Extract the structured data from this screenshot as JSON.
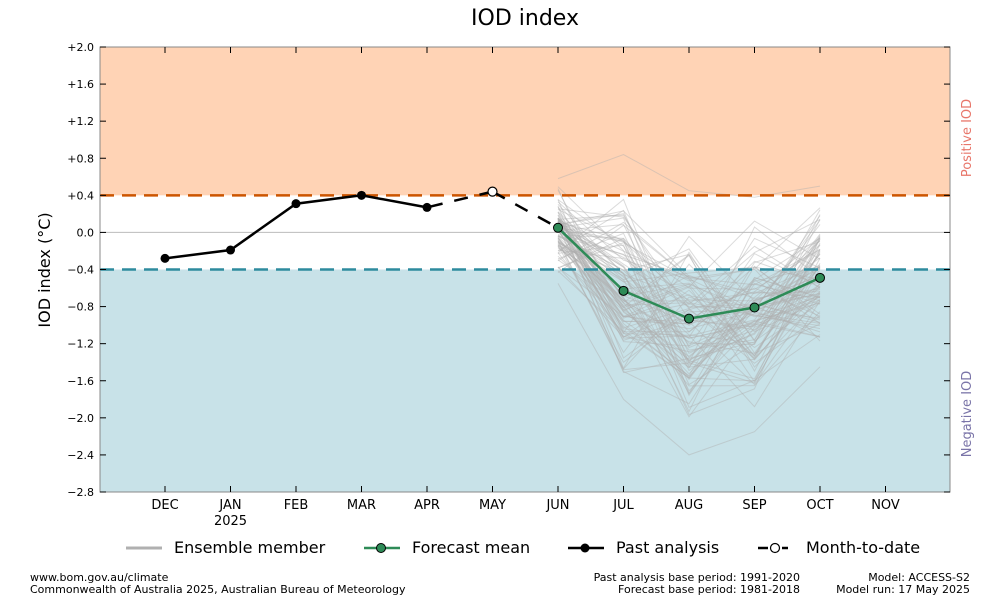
{
  "chart_data": {
    "type": "line",
    "title": "IOD index",
    "ylabel": "IOD index (°C)",
    "xlabel": "",
    "ylim": [
      -2.8,
      2.0
    ],
    "yticks": [
      2.0,
      1.6,
      1.2,
      0.8,
      0.4,
      0.0,
      -0.4,
      -0.8,
      -1.2,
      -1.6,
      -2.0,
      -2.4,
      -2.8
    ],
    "ytick_labels": [
      "+2.0",
      "+1.6",
      "+1.2",
      "+0.8",
      "+0.4",
      "0.0",
      "−0.4",
      "−0.8",
      "−1.2",
      "−1.6",
      "−2.0",
      "−2.4",
      "−2.8"
    ],
    "months": [
      "DEC",
      "JAN",
      "FEB",
      "MAR",
      "APR",
      "MAY",
      "JUN",
      "JUL",
      "AUG",
      "SEP",
      "OCT",
      "NOV"
    ],
    "year_label": {
      "month": "JAN",
      "text": "2025"
    },
    "thresholds": {
      "positive": 0.4,
      "negative": -0.4
    },
    "region_labels": {
      "positive": "Positive IOD",
      "negative": "Negative IOD"
    },
    "past_analysis": {
      "months": [
        "DEC",
        "JAN",
        "FEB",
        "MAR",
        "APR"
      ],
      "values": [
        -0.28,
        -0.19,
        0.31,
        0.4,
        0.27
      ]
    },
    "month_to_date": {
      "month": "MAY",
      "value": 0.44
    },
    "forecast_mean": {
      "months": [
        "JUN",
        "JUL",
        "AUG",
        "SEP",
        "OCT"
      ],
      "values": [
        0.05,
        -0.63,
        -0.93,
        -0.81,
        -0.49
      ]
    },
    "ensemble_envelope": {
      "months": [
        "JUN",
        "JUL",
        "AUG",
        "SEP",
        "OCT"
      ],
      "max": [
        0.58,
        0.84,
        0.45,
        0.38,
        0.5
      ],
      "min": [
        -0.55,
        -1.8,
        -2.4,
        -2.15,
        -1.45
      ]
    },
    "legend": [
      "Ensemble member",
      "Forecast mean",
      "Past analysis",
      "Month-to-date"
    ],
    "colors": {
      "positive_fill": "#ffd3b5",
      "negative_fill": "#c8e2e8",
      "positive_line": "#cc5500",
      "negative_line": "#2e8b9e",
      "forecast": "#2e8b57",
      "ensemble": "#b0b0b0",
      "positive_text": "#e8766a",
      "negative_text": "#7a74a8"
    }
  },
  "footer": {
    "website": "www.bom.gov.au/climate",
    "copyright": "Commonwealth of Australia 2025, Australian Bureau of Meteorology",
    "past_base": "Past analysis base period: 1991-2020",
    "forecast_base": "Forecast base period: 1981-2018",
    "model": "Model: ACCESS-S2",
    "model_run": "Model run: 17 May 2025"
  }
}
